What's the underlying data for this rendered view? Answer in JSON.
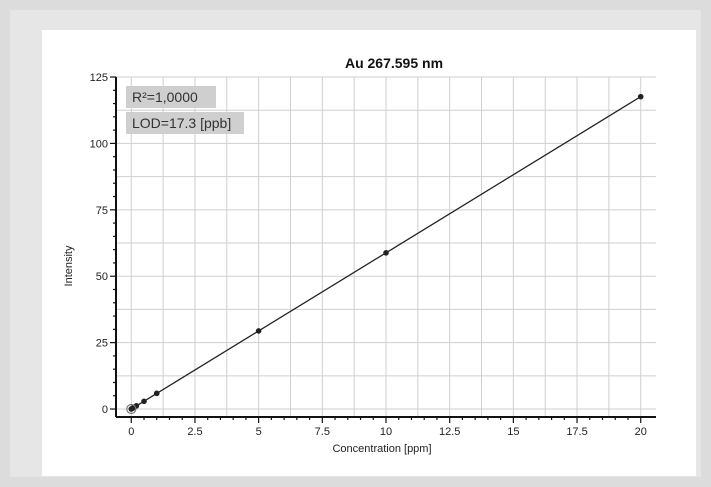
{
  "chart_data": {
    "type": "scatter",
    "title": "Au 267.595 nm",
    "xlabel": "Concentration [ppm]",
    "ylabel": "Intensity",
    "xlim": [
      -0.6,
      20.6
    ],
    "ylim": [
      -3,
      125
    ],
    "x_ticks": [
      0,
      2.5,
      5,
      7.5,
      10,
      12.5,
      15,
      17.5,
      20
    ],
    "y_ticks": [
      0,
      25,
      50,
      75,
      100,
      125
    ],
    "grid": true,
    "legend": "none",
    "annotations": [
      "R²=1,0000",
      "LOD=17.3 [ppb]"
    ],
    "series": [
      {
        "x": [
          0,
          0.05,
          0.1,
          0.2,
          0.5,
          1,
          5,
          10,
          20
        ],
        "y": [
          0,
          0.3,
          0.6,
          1.2,
          2.9,
          5.9,
          29.4,
          58.8,
          117.6
        ]
      }
    ],
    "fit_line": {
      "x": [
        0,
        20
      ],
      "y": [
        0,
        117.6
      ]
    },
    "colors": {
      "points": "#222222",
      "line": "#222222",
      "grid": "#cfcfcf"
    }
  }
}
